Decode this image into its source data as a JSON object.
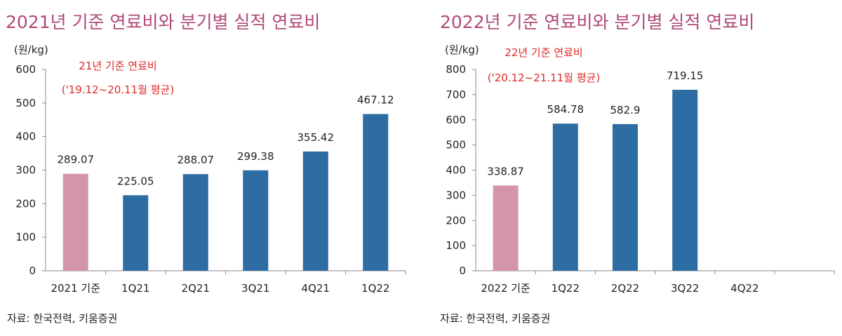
{
  "colors": {
    "title": "#b04a78",
    "baseline_bar": "#d495a8",
    "quarter_bar": "#2e6ca4",
    "annotation": "#e02828",
    "axis": "#888888"
  },
  "chart_data": [
    {
      "type": "bar",
      "title": "2021년 기준 연료비와 분기별 실적 연료비",
      "ylabel": "(원/kg)",
      "xlabel": "",
      "ylim": [
        0,
        600
      ],
      "yticks": [
        0,
        100,
        200,
        300,
        400,
        500,
        600
      ],
      "categories": [
        "2021 기준",
        "1Q21",
        "2Q21",
        "3Q21",
        "4Q21",
        "1Q22"
      ],
      "values": [
        289.07,
        225.05,
        288.07,
        299.38,
        355.42,
        467.12
      ],
      "data_labels": [
        "289.07",
        "225.05",
        "288.07",
        "299.38",
        "355.42",
        "467.12"
      ],
      "bar_colors": [
        "baseline_bar",
        "quarter_bar",
        "quarter_bar",
        "quarter_bar",
        "quarter_bar",
        "quarter_bar"
      ],
      "annotation": [
        "21년 기준 연료비",
        "('19.12~20.11월 평균)"
      ],
      "grid": false,
      "source": "자료: 한국전력, 키움증권"
    },
    {
      "type": "bar",
      "title": "2022년 기준 연료비와 분기별 실적 연료비",
      "ylabel": "(원/kg)",
      "xlabel": "",
      "ylim": [
        0,
        800
      ],
      "yticks": [
        0,
        100,
        200,
        300,
        400,
        500,
        600,
        700,
        800
      ],
      "categories": [
        "2022 기준",
        "1Q22",
        "2Q22",
        "3Q22",
        "4Q22"
      ],
      "values": [
        338.87,
        584.78,
        582.9,
        719.15,
        null
      ],
      "data_labels": [
        "338.87",
        "584.78",
        "582.9",
        "719.15",
        ""
      ],
      "bar_colors": [
        "baseline_bar",
        "quarter_bar",
        "quarter_bar",
        "quarter_bar",
        "quarter_bar"
      ],
      "annotation": [
        "22년 기준 연료비",
        "('20.12~21.11월 평균)"
      ],
      "grid": false,
      "source": "자료: 한국전력, 키움증권"
    }
  ]
}
